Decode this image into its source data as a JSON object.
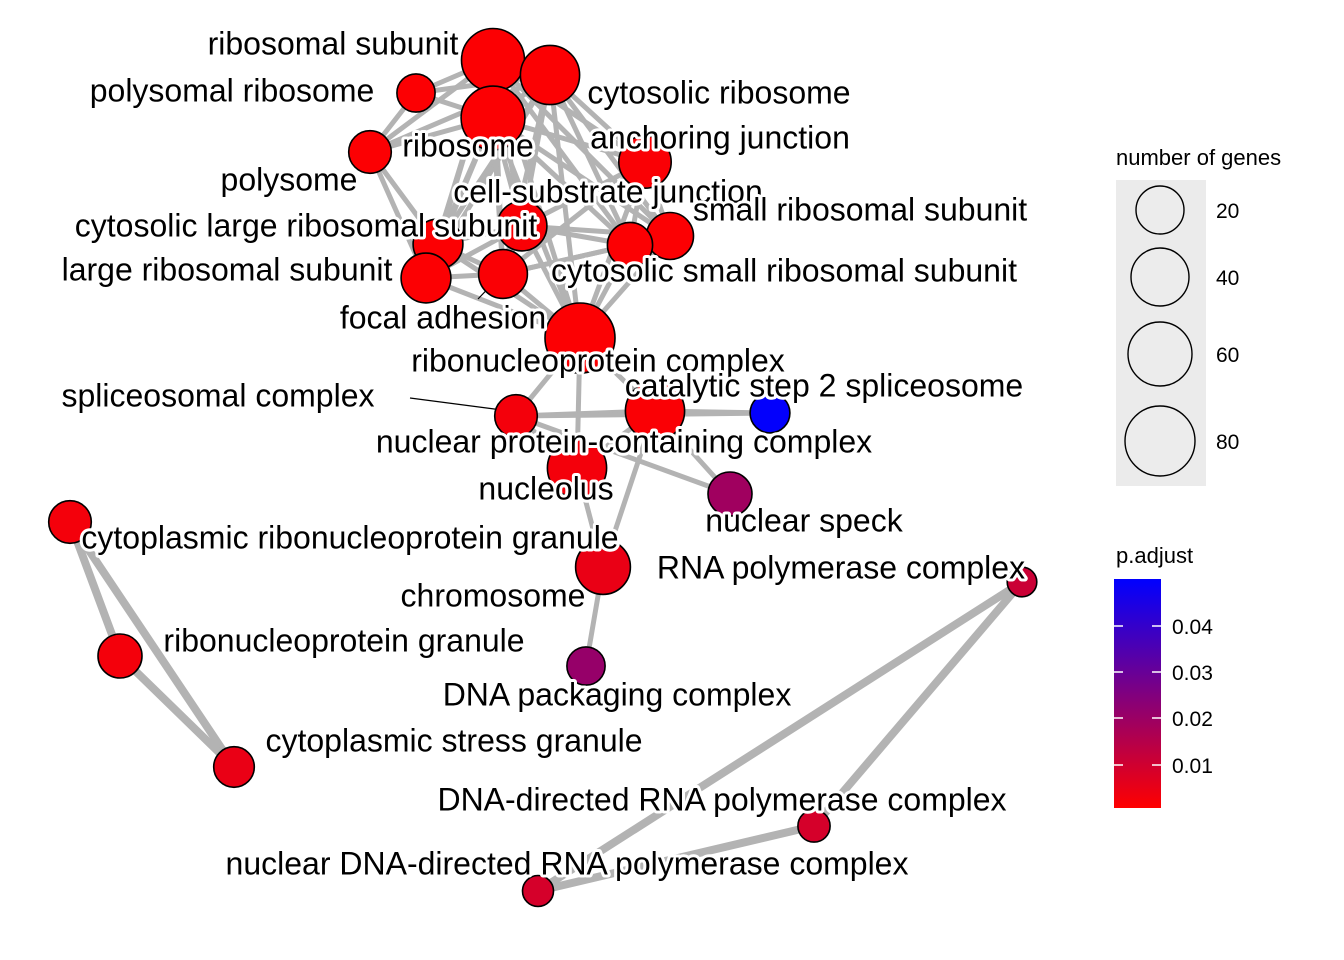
{
  "network": {
    "nodes": [
      {
        "id": "ribosomal-subunit",
        "label": "ribosomal subunit",
        "genes": 60,
        "p_adjust": 0.0005
      },
      {
        "id": "polysomal-ribosome",
        "label": "polysomal ribosome",
        "genes": 12,
        "p_adjust": 0.0005
      },
      {
        "id": "cytosolic-ribosome",
        "label": "cytosolic ribosome",
        "genes": 50,
        "p_adjust": 0.0005
      },
      {
        "id": "ribosome",
        "label": "ribosome",
        "genes": 62,
        "p_adjust": 0.0005
      },
      {
        "id": "anchoring-junction",
        "label": "anchoring junction",
        "genes": 35,
        "p_adjust": 0.001
      },
      {
        "id": "polysome",
        "label": "polysome",
        "genes": 18,
        "p_adjust": 0.0005
      },
      {
        "id": "cell-substrate-junction",
        "label": "cell-substrate junction",
        "genes": 30,
        "p_adjust": 0.001
      },
      {
        "id": "small-ribosomal-subunit",
        "label": "small ribosomal subunit",
        "genes": 25,
        "p_adjust": 0.0005
      },
      {
        "id": "cytosolic-large-ribosomal-subunit",
        "label": "cytosolic large ribosomal subunit",
        "genes": 30,
        "p_adjust": 0.0005
      },
      {
        "id": "large-ribosomal-subunit",
        "label": "large ribosomal subunit",
        "genes": 30,
        "p_adjust": 0.0005
      },
      {
        "id": "cytosolic-small-ribosomal-subunit",
        "label": "cytosolic small ribosomal subunit",
        "genes": 22,
        "p_adjust": 0.0005
      },
      {
        "id": "focal-adhesion",
        "label": "focal adhesion",
        "genes": 28,
        "p_adjust": 0.001
      },
      {
        "id": "ribonucleoprotein-complex",
        "label": "ribonucleoprotein complex",
        "genes": 80,
        "p_adjust": 0.0005
      },
      {
        "id": "spliceosomal-complex",
        "label": "spliceosomal complex",
        "genes": 18,
        "p_adjust": 0.002
      },
      {
        "id": "catalytic-step-2-spliceosome",
        "label": "catalytic step 2 spliceosome",
        "genes": 14,
        "p_adjust": 0.048
      },
      {
        "id": "nuclear-protein-containing-complex",
        "label": "nuclear protein-containing complex",
        "genes": 50,
        "p_adjust": 0.001
      },
      {
        "id": "nucleolus",
        "label": "nucleolus",
        "genes": 50,
        "p_adjust": 0.002
      },
      {
        "id": "nuclear-speck",
        "label": "nuclear speck",
        "genes": 20,
        "p_adjust": 0.018
      },
      {
        "id": "cytoplasmic-ribonucleoprotein-granule",
        "label": "cytoplasmic ribonucleoprotein granule",
        "genes": 18,
        "p_adjust": 0.002
      },
      {
        "id": "rna-polymerase-complex",
        "label": "RNA polymerase complex",
        "genes": 4,
        "p_adjust": 0.01
      },
      {
        "id": "chromosome",
        "label": "chromosome",
        "genes": 40,
        "p_adjust": 0.004
      },
      {
        "id": "ribonucleoprotein-granule",
        "label": "ribonucleoprotein granule",
        "genes": 20,
        "p_adjust": 0.002
      },
      {
        "id": "dna-packaging-complex",
        "label": "DNA packaging complex",
        "genes": 12,
        "p_adjust": 0.02
      },
      {
        "id": "cytoplasmic-stress-granule",
        "label": "cytoplasmic stress granule",
        "genes": 15,
        "p_adjust": 0.004
      },
      {
        "id": "dna-directed-rna-polymerase-complex",
        "label": "DNA-directed RNA polymerase complex",
        "genes": 6,
        "p_adjust": 0.008
      },
      {
        "id": "nuclear-dna-directed-rna-polymerase-complex",
        "label": "nuclear DNA-directed RNA polymerase complex",
        "genes": 5,
        "p_adjust": 0.008
      }
    ],
    "edges": [
      [
        "ribosomal-subunit",
        "cytosolic-ribosome"
      ],
      [
        "ribosomal-subunit",
        "ribosome"
      ],
      [
        "ribosomal-subunit",
        "polysomal-ribosome"
      ],
      [
        "ribosomal-subunit",
        "polysome"
      ],
      [
        "ribosomal-subunit",
        "small-ribosomal-subunit"
      ],
      [
        "ribosomal-subunit",
        "large-ribosomal-subunit"
      ],
      [
        "ribosomal-subunit",
        "cytosolic-large-ribosomal-subunit"
      ],
      [
        "ribosomal-subunit",
        "cytosolic-small-ribosomal-subunit"
      ],
      [
        "ribosomal-subunit",
        "anchoring-junction"
      ],
      [
        "ribosomal-subunit",
        "cell-substrate-junction"
      ],
      [
        "ribosomal-subunit",
        "focal-adhesion"
      ],
      [
        "ribosomal-subunit",
        "ribonucleoprotein-complex"
      ],
      [
        "cytosolic-ribosome",
        "ribosome"
      ],
      [
        "cytosolic-ribosome",
        "polysomal-ribosome"
      ],
      [
        "cytosolic-ribosome",
        "polysome"
      ],
      [
        "cytosolic-ribosome",
        "anchoring-junction"
      ],
      [
        "cytosolic-ribosome",
        "small-ribosomal-subunit"
      ],
      [
        "cytosolic-ribosome",
        "cytosolic-small-ribosomal-subunit"
      ],
      [
        "cytosolic-ribosome",
        "cytosolic-large-ribosomal-subunit"
      ],
      [
        "cytosolic-ribosome",
        "large-ribosomal-subunit"
      ],
      [
        "cytosolic-ribosome",
        "cell-substrate-junction"
      ],
      [
        "cytosolic-ribosome",
        "focal-adhesion"
      ],
      [
        "cytosolic-ribosome",
        "ribonucleoprotein-complex"
      ],
      [
        "ribosome",
        "polysomal-ribosome"
      ],
      [
        "ribosome",
        "polysome"
      ],
      [
        "ribosome",
        "anchoring-junction"
      ],
      [
        "ribosome",
        "cell-substrate-junction"
      ],
      [
        "ribosome",
        "small-ribosomal-subunit"
      ],
      [
        "ribosome",
        "cytosolic-small-ribosomal-subunit"
      ],
      [
        "ribosome",
        "cytosolic-large-ribosomal-subunit"
      ],
      [
        "ribosome",
        "large-ribosomal-subunit"
      ],
      [
        "ribosome",
        "focal-adhesion"
      ],
      [
        "ribosome",
        "ribonucleoprotein-complex"
      ],
      [
        "polysomal-ribosome",
        "polysome"
      ],
      [
        "polysome",
        "large-ribosomal-subunit"
      ],
      [
        "polysome",
        "cytosolic-large-ribosomal-subunit"
      ],
      [
        "anchoring-junction",
        "cell-substrate-junction"
      ],
      [
        "anchoring-junction",
        "focal-adhesion"
      ],
      [
        "anchoring-junction",
        "small-ribosomal-subunit"
      ],
      [
        "anchoring-junction",
        "cytosolic-small-ribosomal-subunit"
      ],
      [
        "anchoring-junction",
        "ribonucleoprotein-complex"
      ],
      [
        "cell-substrate-junction",
        "focal-adhesion"
      ],
      [
        "cell-substrate-junction",
        "small-ribosomal-subunit"
      ],
      [
        "cell-substrate-junction",
        "cytosolic-small-ribosomal-subunit"
      ],
      [
        "cell-substrate-junction",
        "large-ribosomal-subunit"
      ],
      [
        "cell-substrate-junction",
        "cytosolic-large-ribosomal-subunit"
      ],
      [
        "cell-substrate-junction",
        "ribonucleoprotein-complex"
      ],
      [
        "small-ribosomal-subunit",
        "cytosolic-small-ribosomal-subunit"
      ],
      [
        "small-ribosomal-subunit",
        "focal-adhesion"
      ],
      [
        "small-ribosomal-subunit",
        "ribonucleoprotein-complex"
      ],
      [
        "cytosolic-small-ribosomal-subunit",
        "focal-adhesion"
      ],
      [
        "cytosolic-small-ribosomal-subunit",
        "ribonucleoprotein-complex"
      ],
      [
        "cytosolic-large-ribosomal-subunit",
        "large-ribosomal-subunit"
      ],
      [
        "cytosolic-large-ribosomal-subunit",
        "focal-adhesion"
      ],
      [
        "cytosolic-large-ribosomal-subunit",
        "ribonucleoprotein-complex"
      ],
      [
        "large-ribosomal-subunit",
        "focal-adhesion"
      ],
      [
        "large-ribosomal-subunit",
        "ribonucleoprotein-complex"
      ],
      [
        "focal-adhesion",
        "ribonucleoprotein-complex"
      ],
      [
        "ribonucleoprotein-complex",
        "spliceosomal-complex"
      ],
      [
        "ribonucleoprotein-complex",
        "nuclear-protein-containing-complex"
      ],
      [
        "ribonucleoprotein-complex",
        "nucleolus"
      ],
      [
        "spliceosomal-complex",
        "nuclear-protein-containing-complex"
      ],
      [
        "spliceosomal-complex",
        "catalytic-step-2-spliceosome"
      ],
      [
        "spliceosomal-complex",
        "nucleolus"
      ],
      [
        "spliceosomal-complex",
        "nuclear-speck"
      ],
      [
        "nuclear-protein-containing-complex",
        "catalytic-step-2-spliceosome"
      ],
      [
        "nuclear-protein-containing-complex",
        "nucleolus"
      ],
      [
        "nuclear-protein-containing-complex",
        "nuclear-speck"
      ],
      [
        "nuclear-protein-containing-complex",
        "chromosome"
      ],
      [
        "nucleolus",
        "chromosome"
      ],
      [
        "chromosome",
        "dna-packaging-complex"
      ],
      [
        "cytoplasmic-ribonucleoprotein-granule",
        "ribonucleoprotein-granule"
      ],
      [
        "cytoplasmic-ribonucleoprotein-granule",
        "cytoplasmic-stress-granule"
      ],
      [
        "ribonucleoprotein-granule",
        "cytoplasmic-stress-granule"
      ],
      [
        "rna-polymerase-complex",
        "dna-directed-rna-polymerase-complex"
      ],
      [
        "rna-polymerase-complex",
        "nuclear-dna-directed-rna-polymerase-complex"
      ],
      [
        "dna-directed-rna-polymerase-complex",
        "nuclear-dna-directed-rna-polymerase-complex"
      ]
    ]
  },
  "legend": {
    "size_title": "number of genes",
    "size_items": [
      "20",
      "40",
      "60",
      "80"
    ],
    "color_title": "p.adjust",
    "color_ticks": [
      "0.04",
      "0.03",
      "0.02",
      "0.01"
    ],
    "color_low": "#ff0000",
    "color_high": "#0000ff"
  }
}
